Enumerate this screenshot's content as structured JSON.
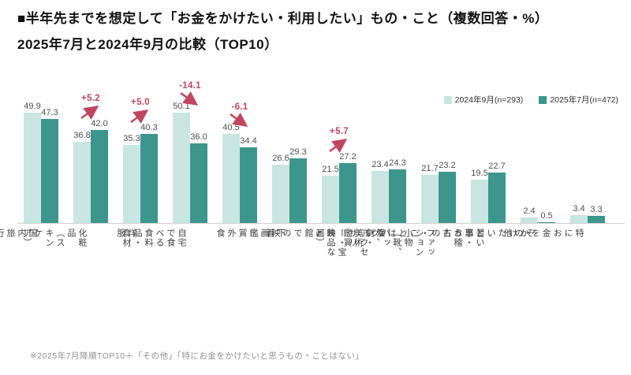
{
  "title": {
    "line1": "■半年先までを想定して「お金をかけたい・利用したい」もの・こと（複数回答・%）",
    "line2": "2025年7月と2024年9月の比較（TOP10）"
  },
  "legend": [
    {
      "label": "2024年9月(n=293)",
      "color": "#c9e5e1"
    },
    {
      "label": "2025年7月(n=472)",
      "color": "#3c968e"
    }
  ],
  "footnote": "※2025年7月降順TOP10＋「その他」「特にお金をかけたいと思うもの・ことはない」",
  "colors": {
    "bar_2024_09": "#c9e5e1",
    "bar_2025_07": "#3c968e",
    "diff_red": "#c0465f",
    "axis_line": "#cfcfcf"
  },
  "chart_data": {
    "type": "bar",
    "title": "半年先までを想定して「お金をかけたい・利用したい」もの・こと（複数回答・%） 2025年7月と2024年9月の比較（TOP10）",
    "categories": [
      "国内旅行",
      "化粧品（スキンケア）",
      "洋服",
      "自宅で食べる食料品・食材",
      "外食",
      "下着",
      "映画館での映画鑑賞",
      "演劇・美術鑑賞",
      "ファッション小物（靴、バッグ、\nアクセサリー・宝飾品など）",
      "習い事・お稽古",
      "その他",
      "特にお金をかけたいと思うもの\n・ことはない"
    ],
    "series": [
      {
        "name": "2024年9月(n=293)",
        "color": "#c9e5e1",
        "values": [
          49.9,
          36.8,
          35.3,
          50.1,
          40.5,
          26.6,
          21.5,
          23.4,
          21.7,
          19.5,
          2.4,
          3.4
        ]
      },
      {
        "name": "2025年7月(n=472)",
        "color": "#3c968e",
        "values": [
          47.3,
          42.0,
          40.3,
          36.0,
          34.4,
          29.3,
          27.2,
          24.3,
          23.2,
          22.7,
          0.5,
          3.3
        ]
      }
    ],
    "annotations": [
      {
        "category_index": 1,
        "label": "+5.2",
        "direction": "up"
      },
      {
        "category_index": 2,
        "label": "+5.0",
        "direction": "up"
      },
      {
        "category_index": 3,
        "label": "-14.1",
        "direction": "down"
      },
      {
        "category_index": 4,
        "label": "-6.1",
        "direction": "down"
      },
      {
        "category_index": 6,
        "label": "+5.7",
        "direction": "up"
      }
    ],
    "xlabel": "",
    "ylabel": "%",
    "ylim": [
      0,
      55
    ],
    "grid": false,
    "legend_position": "top-right",
    "value_labels": true
  }
}
